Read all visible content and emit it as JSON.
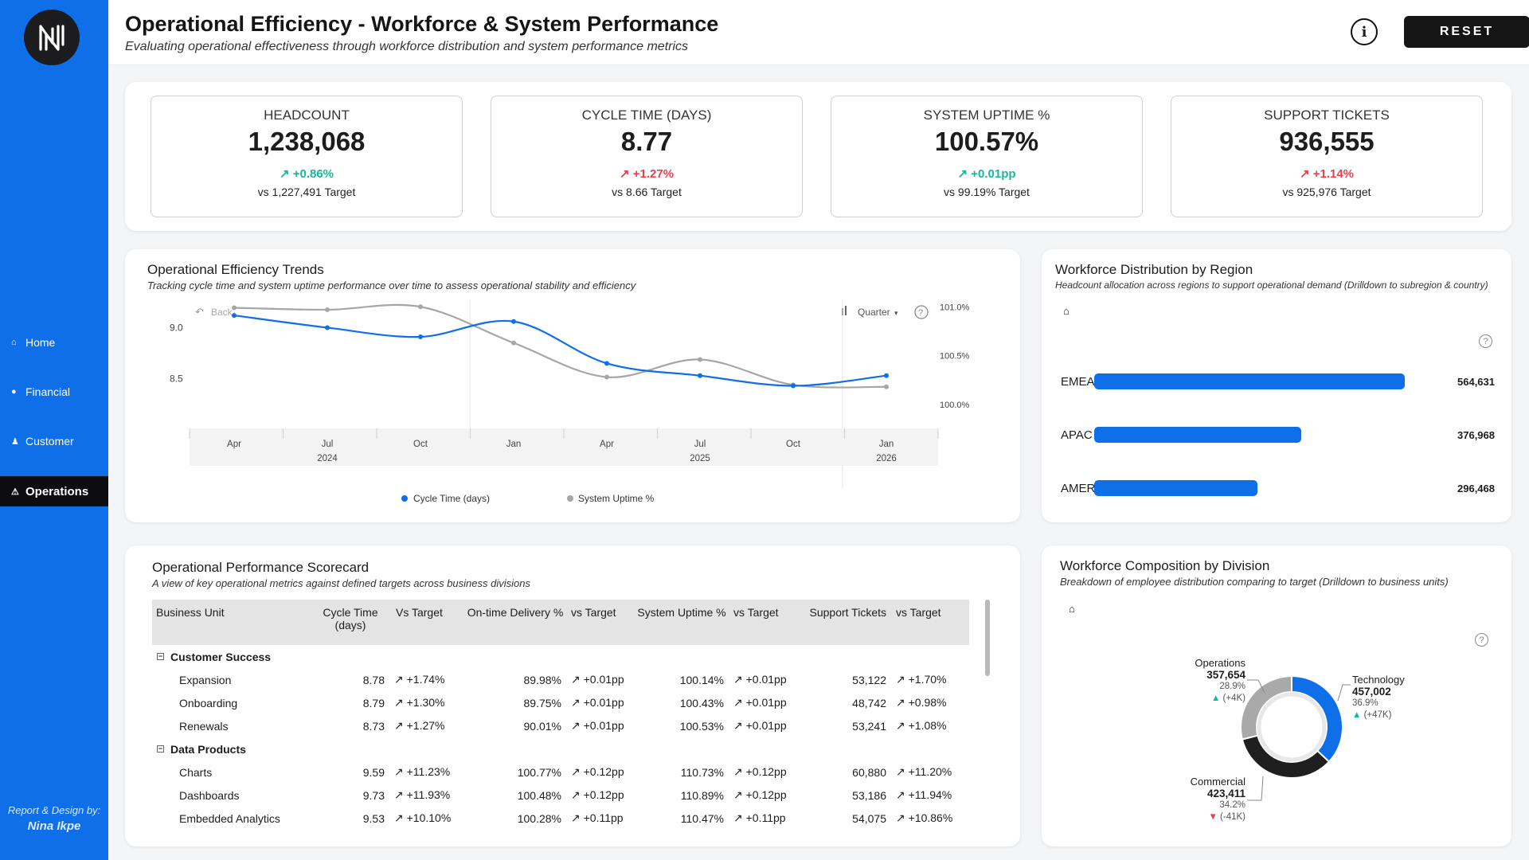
{
  "sidebar": {
    "nav": [
      {
        "label": "Home",
        "icon": "home-icon",
        "glyph": "⌂"
      },
      {
        "label": "Financial",
        "icon": "money-bag-icon",
        "glyph": "●"
      },
      {
        "label": "Customer",
        "icon": "person-icon",
        "glyph": "♟"
      },
      {
        "label": "Operations",
        "icon": "warning-icon",
        "glyph": "⚠"
      }
    ],
    "credit_line": "Report & Design by:",
    "credit_author": "Nina Ikpe"
  },
  "header": {
    "title": "Operational Efficiency - Workforce & System Performance",
    "subtitle": "Evaluating operational effectiveness through workforce distribution and system performance metrics",
    "info_glyph": "i",
    "reset_label": "RESET"
  },
  "kpis": [
    {
      "label": "HEADCOUNT",
      "value": "1,238,068",
      "delta": "+0.86%",
      "target": "vs 1,227,491 Target"
    },
    {
      "label": "CYCLE TIME (DAYS)",
      "value": "8.77",
      "delta": "+1.27%",
      "target": "vs 8.66 Target"
    },
    {
      "label": "SYSTEM UPTIME %",
      "value": "100.57%",
      "delta": "+0.01pp",
      "target": "vs 99.19% Target"
    },
    {
      "label": "SUPPORT TICKETS",
      "value": "936,555",
      "delta": "+1.14%",
      "target": "vs 925,976 Target"
    }
  ],
  "trends": {
    "title": "Operational Efficiency Trends",
    "subtitle": "Tracking cycle time and system uptime performance over time to assess operational stability and efficiency",
    "back_label": "Back",
    "period_label": "Quarter",
    "help": "?"
  },
  "region": {
    "title": "Workforce Distribution by Region",
    "subtitle": "Headcount allocation across regions to support operational demand (Drilldown to subregion & country)",
    "help": "?"
  },
  "scorecard": {
    "title": "Operational Performance Scorecard",
    "subtitle": "A view of key operational metrics against defined targets across business divisions",
    "columns": [
      "Business Unit",
      "Cycle Time (days)",
      "Vs Target",
      "On-time Delivery %",
      "vs Target",
      "System Uptime %",
      "vs Target",
      "Support Tickets",
      "vs Target"
    ],
    "groups": [
      {
        "name": "Customer Success",
        "rows": [
          {
            "name": "Expansion",
            "cycle": "8.78",
            "cycle_vs": "+1.74%",
            "otd": "89.98%",
            "otd_vs": "+0.01pp",
            "uptime": "100.14%",
            "uptime_vs": "+0.01pp",
            "tickets": "53,122",
            "tickets_vs": "+1.70%"
          },
          {
            "name": "Onboarding",
            "cycle": "8.79",
            "cycle_vs": "+1.30%",
            "otd": "89.75%",
            "otd_vs": "+0.01pp",
            "uptime": "100.43%",
            "uptime_vs": "+0.01pp",
            "tickets": "48,742",
            "tickets_vs": "+0.98%"
          },
          {
            "name": "Renewals",
            "cycle": "8.73",
            "cycle_vs": "+1.27%",
            "otd": "90.01%",
            "otd_vs": "+0.01pp",
            "uptime": "100.53%",
            "uptime_vs": "+0.01pp",
            "tickets": "53,241",
            "tickets_vs": "+1.08%"
          }
        ]
      },
      {
        "name": "Data Products",
        "rows": [
          {
            "name": "Charts",
            "cycle": "9.59",
            "cycle_vs": "+11.23%",
            "otd": "100.77%",
            "otd_vs": "+0.12pp",
            "uptime": "110.73%",
            "uptime_vs": "+0.12pp",
            "tickets": "60,880",
            "tickets_vs": "+11.20%"
          },
          {
            "name": "Dashboards",
            "cycle": "9.73",
            "cycle_vs": "+11.93%",
            "otd": "100.48%",
            "otd_vs": "+0.12pp",
            "uptime": "110.89%",
            "uptime_vs": "+0.12pp",
            "tickets": "53,186",
            "tickets_vs": "+11.94%"
          },
          {
            "name": "Embedded Analytics",
            "cycle": "9.53",
            "cycle_vs": "+10.10%",
            "otd": "100.28%",
            "otd_vs": "+0.11pp",
            "uptime": "110.47%",
            "uptime_vs": "+0.11pp",
            "tickets": "54,075",
            "tickets_vs": "+10.86%"
          }
        ]
      }
    ]
  },
  "composition": {
    "title": "Workforce Composition by Division",
    "subtitle": "Breakdown of employee distribution comparing to target (Drilldown to business units)",
    "help": "?",
    "segments": [
      {
        "name": "Operations",
        "value": "357,654",
        "pct": "28.9%",
        "delta": "(+4K)",
        "dir": "▲"
      },
      {
        "name": "Technology",
        "value": "457,002",
        "pct": "36.9%",
        "delta": "(+47K)",
        "dir": "▲"
      },
      {
        "name": "Commercial",
        "value": "423,411",
        "pct": "34.2%",
        "delta": "(-41K)",
        "dir": "▼"
      }
    ]
  },
  "chart_data": [
    {
      "type": "line",
      "x": [
        "Apr 2024",
        "Jul 2024",
        "Oct 2024",
        "Jan 2025",
        "Apr 2025",
        "Jul 2025",
        "Oct 2025",
        "Jan 2026"
      ],
      "xticks": [
        "Apr",
        "Jul",
        "Oct",
        "Jan",
        "Apr",
        "Jul",
        "Oct",
        "Jan"
      ],
      "year_labels": [
        "2024",
        "2025",
        "2026"
      ],
      "series": [
        {
          "name": "Cycle Time (days)",
          "axis": "left",
          "color": "#0f6fe8",
          "values": [
            9.12,
            9.0,
            8.91,
            9.06,
            8.65,
            8.53,
            8.43,
            8.53
          ]
        },
        {
          "name": "System Uptime %",
          "axis": "right",
          "color": "#a6a6a6",
          "values": [
            100.99,
            100.97,
            101.0,
            100.63,
            100.28,
            100.46,
            100.2,
            100.18
          ]
        }
      ],
      "y_left_ticks": [
        "9.0",
        "8.5"
      ],
      "y_right_ticks": [
        "101.0%",
        "100.5%",
        "100.0%"
      ],
      "ylim_left": [
        8.2,
        9.3
      ],
      "ylim_right": [
        99.95,
        101.1
      ],
      "legend": "bottom"
    },
    {
      "type": "bar",
      "orientation": "horizontal",
      "categories": [
        "EMEA",
        "APAC",
        "AMER"
      ],
      "values": [
        564631,
        376968,
        296468
      ],
      "value_labels": [
        "564,631",
        "376,968",
        "296,468"
      ]
    },
    {
      "type": "pie",
      "categories": [
        "Technology",
        "Commercial",
        "Operations"
      ],
      "values": [
        457002,
        423411,
        357654
      ],
      "colors": [
        "#0f6fe8",
        "#1f1f1f",
        "#a9a9a9"
      ]
    }
  ]
}
